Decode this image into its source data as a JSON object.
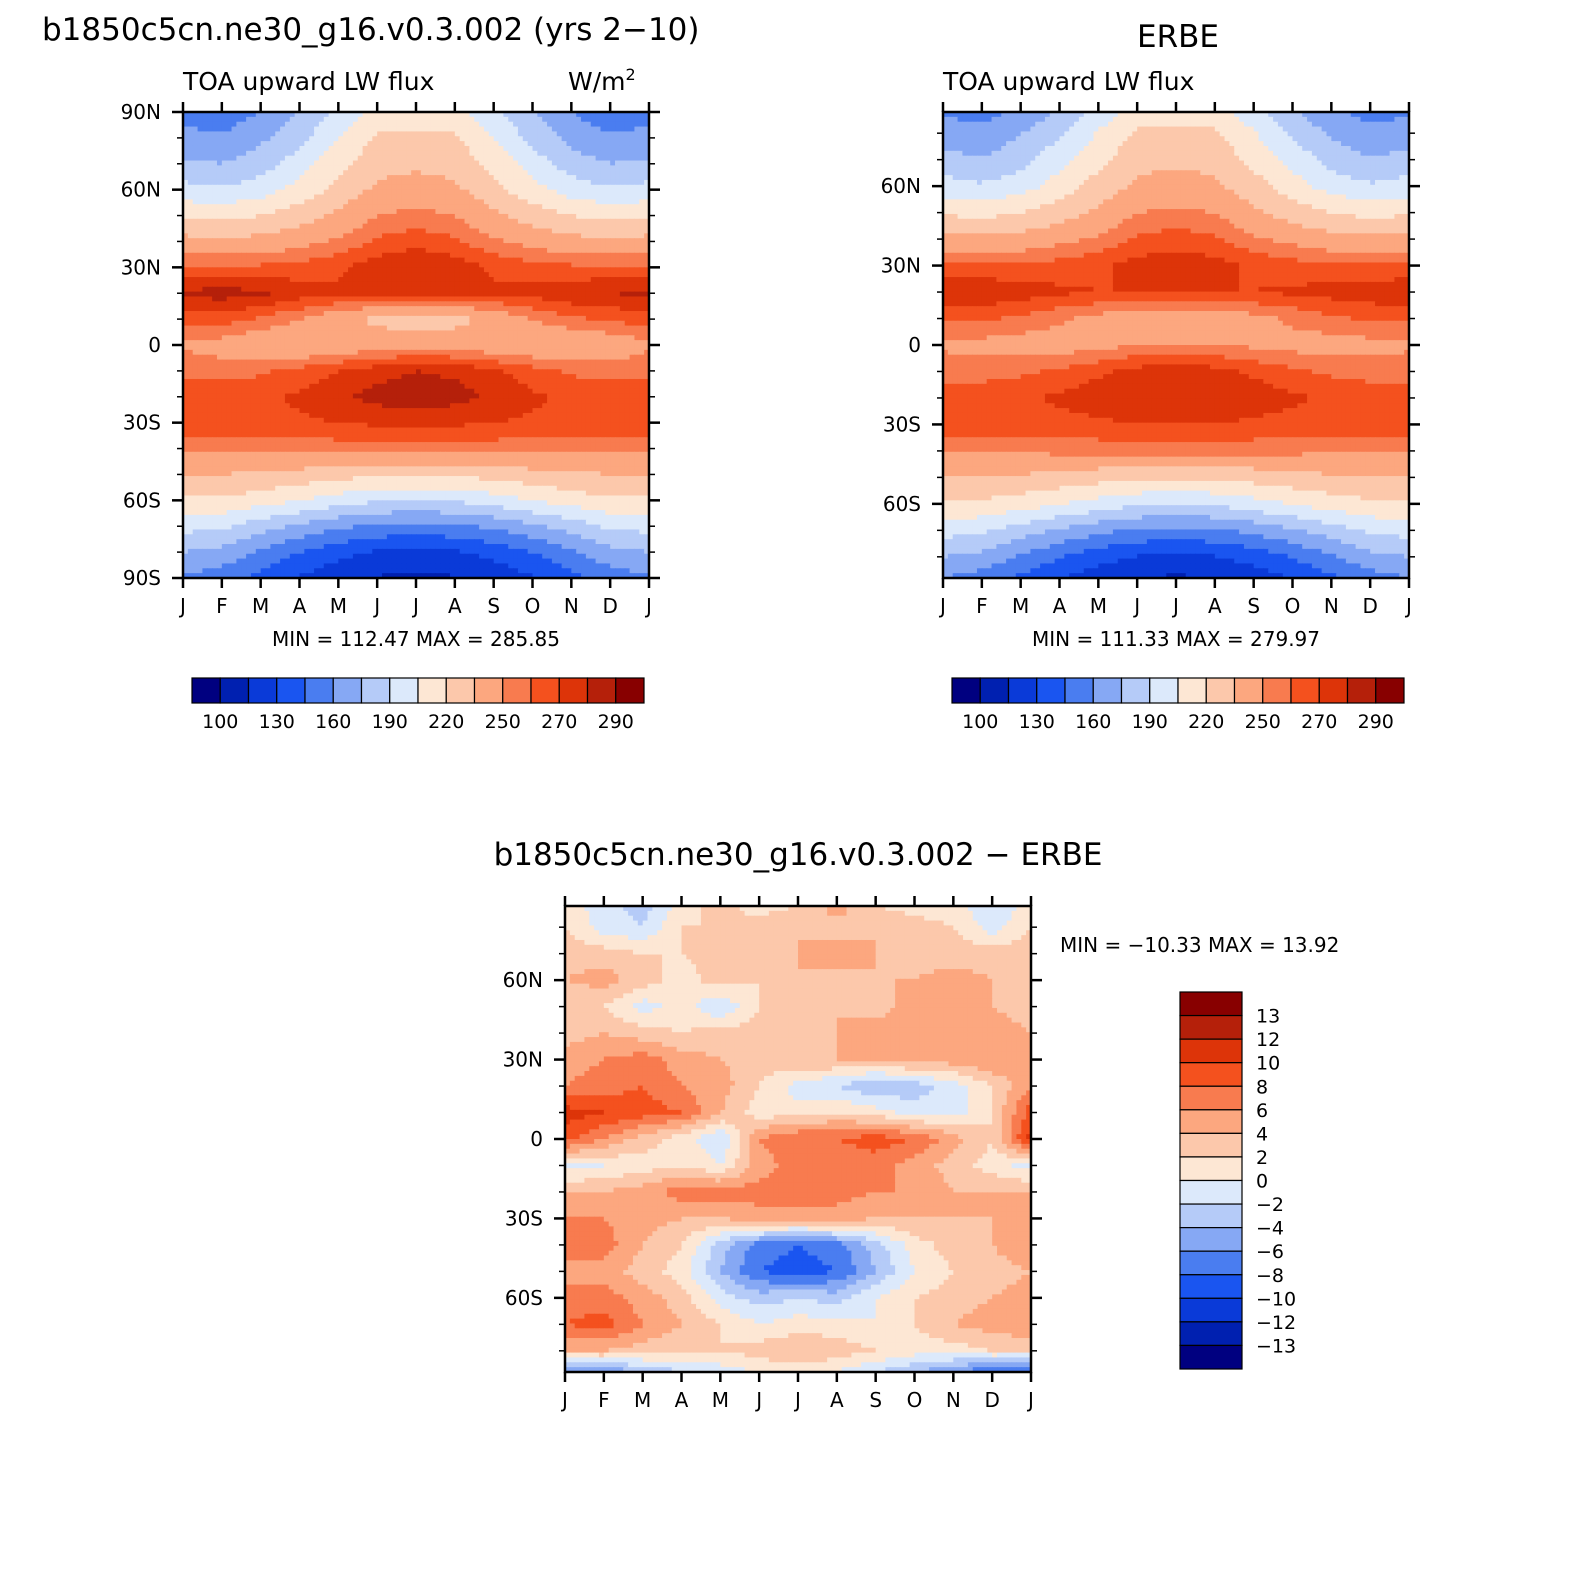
{
  "colors": {
    "ramp": [
      "#000080",
      "#0020b0",
      "#0a3ad8",
      "#1a55f0",
      "#4a7df0",
      "#86a8f4",
      "#b5cbf8",
      "#dce9fb",
      "#fde7d4",
      "#fcc8ab",
      "#fca77f",
      "#f87b4f",
      "#f4511e",
      "#dd3409",
      "#b5200a",
      "#880000"
    ],
    "diff_ramp": [
      "#000080",
      "#0020b0",
      "#0a3ad8",
      "#1a55f0",
      "#4a7df0",
      "#86a8f4",
      "#b5cbf8",
      "#dce9fb",
      "#fde7d4",
      "#fcc8ab",
      "#fca77f",
      "#f87b4f",
      "#f4511e",
      "#dd3409",
      "#b5200a",
      "#880000"
    ]
  },
  "chart_data": [
    {
      "id": "model",
      "type": "contour",
      "title": "b1850c5cn.ne30_g16.v0.3.002 (yrs 2−10)",
      "subtitle_left": "TOA upward LW flux",
      "subtitle_right": "W/m",
      "subtitle_right_sup": "2",
      "x_ticks": [
        "J",
        "F",
        "M",
        "A",
        "M",
        "J",
        "J",
        "A",
        "S",
        "O",
        "N",
        "D",
        "J"
      ],
      "y_ticks": [
        "90N",
        "60N",
        "30N",
        "0",
        "30S",
        "60S",
        "90S"
      ],
      "y_tick_values": [
        90,
        60,
        30,
        0,
        -30,
        -60,
        -90
      ],
      "ylim": [
        -90,
        90
      ],
      "stats": "MIN = 112.47  MAX = 285.85",
      "colorbar_labels": [
        "100",
        "130",
        "160",
        "190",
        "220",
        "250",
        "270",
        "290"
      ],
      "levels": [
        100,
        115,
        130,
        145,
        160,
        175,
        190,
        205,
        220,
        235,
        250,
        260,
        270,
        280,
        290
      ],
      "rows_lat": [
        90,
        80,
        70,
        60,
        50,
        40,
        30,
        20,
        10,
        0,
        -10,
        -20,
        -30,
        -40,
        -50,
        -60,
        -70,
        -80,
        -90
      ],
      "field": [
        [
          155,
          150,
          160,
          175,
          195,
          210,
          212,
          210,
          195,
          175,
          160,
          150,
          155
        ],
        [
          165,
          162,
          172,
          185,
          205,
          222,
          224,
          222,
          205,
          185,
          170,
          162,
          165
        ],
        [
          178,
          175,
          182,
          198,
          215,
          230,
          232,
          230,
          215,
          198,
          182,
          175,
          178
        ],
        [
          195,
          192,
          198,
          210,
          225,
          238,
          242,
          238,
          225,
          210,
          198,
          192,
          195
        ],
        [
          218,
          215,
          220,
          228,
          238,
          250,
          254,
          250,
          238,
          228,
          220,
          215,
          218
        ],
        [
          240,
          238,
          240,
          245,
          252,
          262,
          266,
          262,
          252,
          245,
          240,
          238,
          240
        ],
        [
          262,
          262,
          262,
          264,
          268,
          276,
          280,
          276,
          268,
          264,
          262,
          262,
          262
        ],
        [
          282,
          285,
          282,
          276,
          272,
          272,
          272,
          272,
          272,
          274,
          278,
          280,
          282
        ],
        [
          265,
          265,
          258,
          250,
          240,
          232,
          225,
          230,
          240,
          250,
          258,
          262,
          265
        ],
        [
          248,
          244,
          238,
          236,
          238,
          244,
          244,
          244,
          240,
          238,
          236,
          240,
          248
        ],
        [
          258,
          256,
          258,
          264,
          270,
          276,
          280,
          278,
          272,
          264,
          258,
          256,
          258
        ],
        [
          266,
          266,
          268,
          272,
          278,
          284,
          286,
          284,
          278,
          272,
          268,
          266,
          266
        ],
        [
          268,
          268,
          268,
          268,
          270,
          272,
          272,
          272,
          270,
          268,
          268,
          268,
          268
        ],
        [
          252,
          252,
          252,
          254,
          255,
          256,
          256,
          256,
          255,
          254,
          252,
          252,
          252
        ],
        [
          235,
          235,
          233,
          230,
          226,
          222,
          222,
          222,
          226,
          230,
          233,
          235,
          235
        ],
        [
          218,
          218,
          212,
          205,
          198,
          192,
          190,
          192,
          198,
          205,
          212,
          218,
          218
        ],
        [
          195,
          193,
          182,
          172,
          163,
          158,
          155,
          158,
          163,
          172,
          182,
          193,
          195
        ],
        [
          175,
          170,
          158,
          145,
          135,
          128,
          125,
          128,
          135,
          145,
          158,
          170,
          175
        ],
        [
          158,
          152,
          140,
          128,
          120,
          114,
          112,
          114,
          120,
          128,
          140,
          152,
          158
        ]
      ]
    },
    {
      "id": "obs",
      "type": "contour",
      "title": "ERBE",
      "subtitle_left": "TOA upward LW flux",
      "x_ticks": [
        "J",
        "F",
        "M",
        "A",
        "M",
        "J",
        "J",
        "A",
        "S",
        "O",
        "N",
        "D",
        "J"
      ],
      "y_ticks": [
        "60N",
        "30N",
        "0",
        "30S",
        "60S"
      ],
      "y_tick_values": [
        60,
        30,
        0,
        -30,
        -60
      ],
      "ylim": [
        -88,
        88
      ],
      "stats": "MIN = 111.33  MAX = 279.97",
      "colorbar_labels": [
        "100",
        "130",
        "160",
        "190",
        "220",
        "250",
        "270",
        "290"
      ],
      "levels": [
        100,
        115,
        130,
        145,
        160,
        175,
        190,
        205,
        220,
        235,
        250,
        260,
        270,
        280,
        290
      ],
      "rows_lat": [
        88,
        80,
        70,
        60,
        50,
        40,
        30,
        20,
        10,
        0,
        -10,
        -20,
        -30,
        -40,
        -50,
        -60,
        -70,
        -80,
        -88
      ],
      "field": [
        [
          158,
          155,
          162,
          178,
          196,
          212,
          214,
          212,
          196,
          178,
          162,
          155,
          158
        ],
        [
          168,
          164,
          174,
          188,
          206,
          222,
          224,
          222,
          206,
          188,
          172,
          164,
          168
        ],
        [
          180,
          176,
          184,
          200,
          216,
          230,
          232,
          230,
          216,
          200,
          184,
          176,
          180
        ],
        [
          196,
          192,
          198,
          212,
          226,
          238,
          241,
          238,
          226,
          212,
          198,
          192,
          196
        ],
        [
          218,
          215,
          220,
          228,
          238,
          250,
          252,
          250,
          238,
          228,
          220,
          215,
          218
        ],
        [
          240,
          238,
          240,
          246,
          252,
          262,
          265,
          262,
          252,
          246,
          240,
          238,
          240
        ],
        [
          262,
          262,
          262,
          264,
          268,
          274,
          276,
          274,
          268,
          264,
          262,
          262,
          262
        ],
        [
          278,
          278,
          276,
          272,
          270,
          270,
          270,
          270,
          270,
          272,
          274,
          276,
          278
        ],
        [
          262,
          262,
          258,
          252,
          246,
          242,
          240,
          242,
          246,
          252,
          258,
          262,
          262
        ],
        [
          248,
          246,
          244,
          244,
          246,
          250,
          250,
          250,
          248,
          246,
          244,
          246,
          248
        ],
        [
          256,
          256,
          258,
          262,
          268,
          274,
          276,
          274,
          268,
          262,
          258,
          256,
          256
        ],
        [
          266,
          266,
          268,
          272,
          276,
          280,
          280,
          280,
          276,
          272,
          268,
          266,
          266
        ],
        [
          266,
          266,
          266,
          266,
          268,
          270,
          270,
          270,
          268,
          266,
          266,
          266,
          266
        ],
        [
          252,
          252,
          252,
          253,
          254,
          255,
          255,
          255,
          254,
          253,
          252,
          252,
          252
        ],
        [
          235,
          235,
          233,
          230,
          226,
          223,
          222,
          223,
          226,
          230,
          233,
          235,
          235
        ],
        [
          218,
          217,
          212,
          206,
          199,
          193,
          191,
          193,
          199,
          206,
          212,
          217,
          218
        ],
        [
          196,
          193,
          183,
          173,
          164,
          158,
          156,
          158,
          164,
          173,
          183,
          193,
          196
        ],
        [
          175,
          170,
          158,
          146,
          136,
          129,
          126,
          129,
          136,
          146,
          158,
          170,
          175
        ],
        [
          160,
          154,
          142,
          130,
          121,
          115,
          113,
          115,
          121,
          130,
          142,
          154,
          160
        ]
      ]
    },
    {
      "id": "diff",
      "type": "contour",
      "title": "b1850c5cn.ne30_g16.v0.3.002 − ERBE",
      "x_ticks": [
        "J",
        "F",
        "M",
        "A",
        "M",
        "J",
        "J",
        "A",
        "S",
        "O",
        "N",
        "D",
        "J"
      ],
      "y_ticks": [
        "60N",
        "30N",
        "0",
        "30S",
        "60S"
      ],
      "y_tick_values": [
        60,
        30,
        0,
        -30,
        -60
      ],
      "ylim": [
        -88,
        88
      ],
      "stats": "MIN = −10.33  MAX =   13.92",
      "colorbar_labels": [
        "13",
        "12",
        "10",
        "8",
        "6",
        "4",
        "2",
        "0",
        "−2",
        "−4",
        "−6",
        "−8",
        "−10",
        "−12",
        "−13"
      ],
      "levels": [
        -13,
        -12,
        -10,
        -8,
        -6,
        -4,
        -2,
        0,
        2,
        4,
        6,
        8,
        10,
        12,
        13
      ],
      "rows_lat": [
        88,
        80,
        70,
        60,
        50,
        40,
        30,
        20,
        10,
        0,
        -10,
        -20,
        -30,
        -40,
        -50,
        -60,
        -70,
        -80,
        -88
      ],
      "field": [
        [
          1,
          -1,
          -3,
          1,
          3,
          1,
          2,
          5,
          2,
          1,
          1,
          -2,
          1
        ],
        [
          2,
          -1,
          -2,
          2,
          2,
          3,
          4,
          3,
          4,
          3,
          2,
          -1,
          2
        ],
        [
          3,
          3,
          2,
          2,
          3,
          3,
          4,
          5,
          4,
          3,
          3,
          3,
          3
        ],
        [
          4,
          5,
          3,
          1,
          3,
          2,
          4,
          3,
          4,
          4,
          5,
          4,
          4
        ],
        [
          2,
          2,
          -1,
          1,
          -2,
          2,
          3,
          4,
          3,
          5,
          6,
          4,
          3
        ],
        [
          3,
          4,
          3,
          2,
          3,
          3,
          3,
          4,
          5,
          6,
          6,
          5,
          4
        ],
        [
          5,
          6,
          7,
          5,
          4,
          3,
          4,
          4,
          4,
          5,
          5,
          6,
          5
        ],
        [
          6,
          7,
          8,
          6,
          5,
          2,
          -1,
          -2,
          -4,
          -3,
          -1,
          2,
          6
        ],
        [
          11,
          10,
          9,
          8,
          4,
          1,
          1,
          2,
          1,
          -1,
          -1,
          2,
          9
        ],
        [
          9,
          6,
          3,
          1,
          -2,
          6,
          8,
          8,
          9,
          8,
          5,
          2,
          11
        ],
        [
          -1,
          0,
          1,
          2,
          0,
          5,
          7,
          6,
          7,
          5,
          3,
          1,
          -1
        ],
        [
          4,
          4,
          5,
          7,
          7,
          7,
          7,
          7,
          6,
          6,
          4,
          4,
          4
        ],
        [
          6,
          6,
          5,
          4,
          4,
          5,
          5,
          5,
          4,
          4,
          4,
          4,
          6
        ],
        [
          8,
          7,
          4,
          2,
          -3,
          -7,
          -8,
          -7,
          -3,
          1,
          3,
          4,
          6
        ],
        [
          5,
          5,
          3,
          1,
          -4,
          -8,
          -9,
          -8,
          -4,
          0,
          2,
          3,
          4
        ],
        [
          7,
          7,
          5,
          3,
          -1,
          -3,
          -2,
          -3,
          0,
          2,
          3,
          4,
          5
        ],
        [
          8,
          9,
          6,
          4,
          2,
          0,
          1,
          1,
          0,
          2,
          4,
          5,
          6
        ],
        [
          4,
          4,
          3,
          2,
          2,
          3,
          4,
          3,
          2,
          1,
          1,
          2,
          2
        ],
        [
          -7,
          -6,
          -4,
          -2,
          -1,
          0,
          1,
          0,
          -2,
          -4,
          -6,
          -8,
          -9
        ]
      ]
    }
  ]
}
